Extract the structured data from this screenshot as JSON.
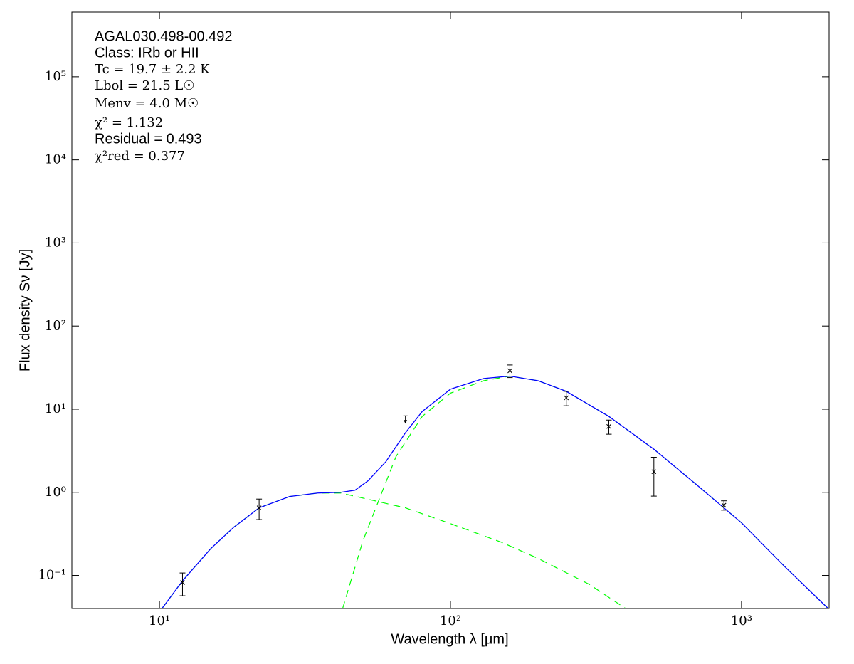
{
  "chart_data": {
    "type": "line",
    "x_label": "Wavelength λ [μm]",
    "y_label": "Flux density Sν [Jy]",
    "annotations": [
      "AGAL030.498-00.492",
      "Class: IRb or HII",
      "Tc = 19.7 ± 2.2 K",
      "Lbol = 21.5 L☉",
      "Menv = 4.0 M☉",
      "χ² = 1.132",
      "Residual = 0.493",
      "χ²red = 0.377"
    ],
    "xscale": "log",
    "yscale": "log",
    "xlim": [
      5,
      2000
    ],
    "ylim": [
      0.04,
      600000
    ],
    "xticks": [
      {
        "value": 10,
        "label": "10¹"
      },
      {
        "value": 100,
        "label": "10²"
      },
      {
        "value": 1000,
        "label": "10³"
      }
    ],
    "yticks": [
      {
        "value": 0.1,
        "label": "10⁻¹"
      },
      {
        "value": 1,
        "label": "10⁰"
      },
      {
        "value": 10,
        "label": "10¹"
      },
      {
        "value": 100,
        "label": "10²"
      },
      {
        "value": 1000,
        "label": "10³"
      },
      {
        "value": 10000,
        "label": "10⁴"
      },
      {
        "value": 100000,
        "label": "10⁵"
      }
    ],
    "series": [
      {
        "color": "#00ff00",
        "dashed": true,
        "x": [
          10.2,
          12,
          15,
          18,
          22,
          28,
          35,
          42,
          55,
          70,
          100,
          150,
          200,
          300,
          400
        ],
        "values": [
          0.04,
          0.086,
          0.21,
          0.38,
          0.65,
          0.89,
          0.98,
          0.98,
          0.79,
          0.65,
          0.42,
          0.25,
          0.16,
          0.078,
          0.04
        ]
      },
      {
        "color": "#00ff00",
        "dashed": true,
        "x": [
          42.6,
          50,
          57,
          65,
          80,
          100,
          130,
          160,
          200,
          250,
          350,
          500,
          700,
          1000,
          1400,
          2000
        ],
        "values": [
          0.04,
          0.26,
          0.84,
          2.7,
          8.2,
          15.6,
          22,
          25,
          22,
          16.4,
          8.2,
          3.3,
          1.24,
          0.43,
          0.13,
          0.039
        ]
      },
      {
        "color": "#0000ff",
        "dashed": false,
        "x": [
          10.2,
          12,
          15,
          18,
          22,
          28,
          35,
          42,
          47,
          52,
          60,
          70,
          80,
          100,
          130,
          160,
          200,
          250,
          350,
          500,
          700,
          1000,
          1400,
          2000
        ],
        "values": [
          0.04,
          0.086,
          0.21,
          0.38,
          0.65,
          0.89,
          0.98,
          1.0,
          1.06,
          1.37,
          2.34,
          5.2,
          9.4,
          17.4,
          23.4,
          25,
          22,
          16.4,
          8.2,
          3.3,
          1.24,
          0.43,
          0.13,
          0.039
        ]
      }
    ],
    "points": {
      "color": "#000000",
      "x": [
        12,
        22,
        70,
        160,
        250,
        350,
        500,
        870
      ],
      "values": [
        0.082,
        0.65,
        8,
        29,
        13.7,
        6.2,
        1.77,
        0.7
      ],
      "errors": [
        0.025,
        0.18,
        null,
        5,
        2.7,
        1.2,
        0.87,
        0.09
      ],
      "upper_limit": [
        false,
        false,
        true,
        false,
        false,
        false,
        false,
        false
      ]
    }
  }
}
